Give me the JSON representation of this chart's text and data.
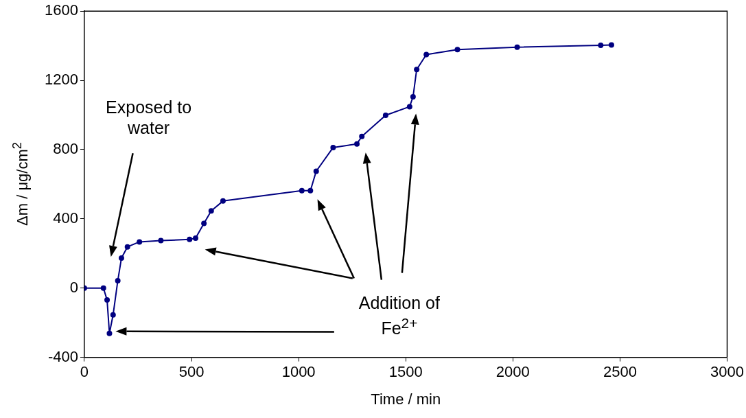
{
  "chart_data": {
    "type": "line",
    "xlabel": "Time / min",
    "ylabel": "Δm / μg/cm$^{2}$",
    "xlim": [
      0,
      3000
    ],
    "xticks": [
      0,
      500,
      1000,
      1500,
      2000,
      2500,
      3000
    ],
    "ylim": [
      -400,
      1600
    ],
    "yticks": [
      -400,
      0,
      400,
      800,
      1200,
      1600
    ],
    "grid": false,
    "legend": false,
    "marker": "circle",
    "line_style": "solid",
    "series": [
      {
        "color": "#000080",
        "x": [
          0,
          89,
          106,
          117,
          134,
          156,
          173,
          201,
          257,
          357,
          491,
          519,
          558,
          592,
          647,
          1015,
          1055,
          1082,
          1161,
          1272,
          1295,
          1406,
          1518,
          1534,
          1551,
          1596,
          1741,
          2020,
          2410,
          2460
        ],
        "values": [
          0,
          0,
          -69,
          -262,
          -155,
          43,
          173,
          238,
          267,
          274,
          281,
          288,
          374,
          446,
          503,
          563,
          563,
          675,
          812,
          833,
          876,
          998,
          1048,
          1105,
          1263,
          1349,
          1378,
          1392,
          1403,
          1405
        ]
      }
    ],
    "annotations": [
      "Exposed to water",
      "Addition of Fe$^{2+}$"
    ]
  }
}
